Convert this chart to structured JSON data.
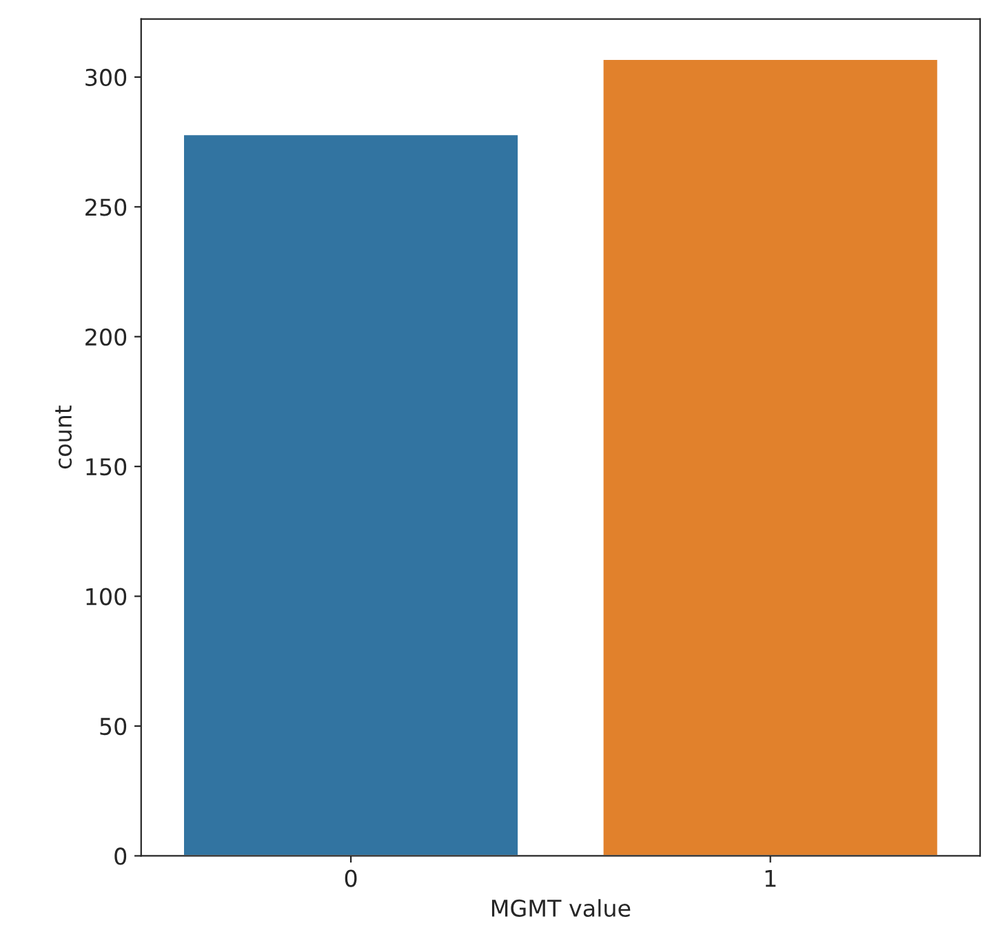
{
  "chart_data": {
    "type": "bar",
    "xlabel": "MGMT value",
    "ylabel": "count",
    "categories": [
      "0",
      "1"
    ],
    "values": [
      278,
      307
    ],
    "colors": [
      "#3274a1",
      "#e1812c"
    ],
    "ylim": [
      0,
      322.35
    ],
    "yticks": [
      0,
      50,
      100,
      150,
      200,
      250,
      300
    ],
    "grid": false
  }
}
